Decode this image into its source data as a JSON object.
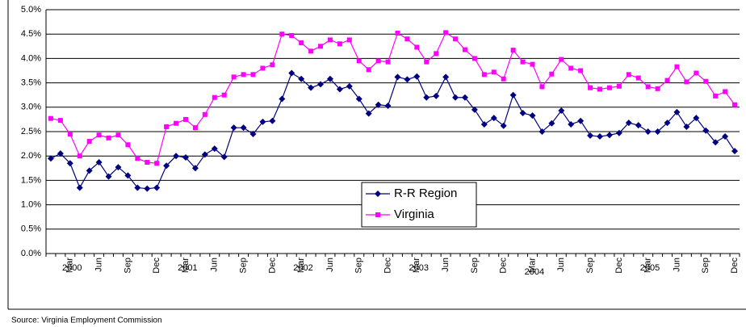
{
  "chart_data": {
    "type": "line",
    "categories": [
      null,
      null,
      "Mar",
      null,
      null,
      "Jun",
      null,
      null,
      "Sep",
      null,
      null,
      "Dec",
      null,
      null,
      "Mar",
      null,
      null,
      "Jun",
      null,
      null,
      "Sep",
      null,
      null,
      "Dec",
      null,
      null,
      "Mar",
      null,
      null,
      "Jun",
      null,
      null,
      "Sep",
      null,
      null,
      "Dec",
      null,
      null,
      "Mar",
      null,
      null,
      "Jun",
      null,
      null,
      "Sep",
      null,
      null,
      "Dec",
      null,
      null,
      "Mar",
      null,
      null,
      "Jun",
      null,
      null,
      "Sep",
      null,
      null,
      "Dec",
      null,
      null,
      "Mar",
      null,
      null,
      "Jun",
      null,
      null,
      "Sep",
      null,
      null,
      "Dec"
    ],
    "year_labels": [
      "2000",
      "2001",
      "2002",
      "2003",
      "2004",
      "2005"
    ],
    "series": [
      {
        "name": "R-R Region",
        "color": "#000080",
        "marker": "diamond",
        "values": [
          1.95,
          2.05,
          1.85,
          1.35,
          1.7,
          1.87,
          1.58,
          1.77,
          1.6,
          1.35,
          1.33,
          1.35,
          1.8,
          2.0,
          1.97,
          1.75,
          2.03,
          2.15,
          1.98,
          2.58,
          2.58,
          2.45,
          2.7,
          2.72,
          3.17,
          3.7,
          3.58,
          3.4,
          3.47,
          3.58,
          3.37,
          3.43,
          3.17,
          2.87,
          3.05,
          3.03,
          3.62,
          3.57,
          3.63,
          3.2,
          3.23,
          3.62,
          3.2,
          3.2,
          2.95,
          2.65,
          2.78,
          2.62,
          3.25,
          2.88,
          2.83,
          2.5,
          2.67,
          2.93,
          2.65,
          2.72,
          2.42,
          2.4,
          2.43,
          2.47,
          2.68,
          2.63,
          2.5,
          2.5,
          2.68,
          2.9,
          2.6,
          2.78,
          2.52,
          2.28,
          2.4,
          2.1
        ]
      },
      {
        "name": "Virginia",
        "color": "#ff00ff",
        "marker": "square",
        "values": [
          2.77,
          2.73,
          2.45,
          2.0,
          2.3,
          2.43,
          2.37,
          2.43,
          2.23,
          1.95,
          1.87,
          1.85,
          2.6,
          2.67,
          2.75,
          2.58,
          2.85,
          3.2,
          3.25,
          3.62,
          3.67,
          3.67,
          3.8,
          3.87,
          4.5,
          4.47,
          4.32,
          4.15,
          4.25,
          4.38,
          4.3,
          4.38,
          3.95,
          3.77,
          3.95,
          3.93,
          4.52,
          4.4,
          4.23,
          3.93,
          4.1,
          4.53,
          4.4,
          4.18,
          4.0,
          3.67,
          3.72,
          3.58,
          4.17,
          3.93,
          3.88,
          3.42,
          3.68,
          3.98,
          3.8,
          3.75,
          3.4,
          3.37,
          3.4,
          3.43,
          3.67,
          3.6,
          3.42,
          3.38,
          3.55,
          3.83,
          3.52,
          3.7,
          3.53,
          3.23,
          3.32,
          3.05
        ]
      }
    ],
    "ylim": [
      0,
      5
    ],
    "yticks": [
      {
        "value": 0,
        "label": "0.0%"
      },
      {
        "value": 0.5,
        "label": "0.5%"
      },
      {
        "value": 1,
        "label": "1.0%"
      },
      {
        "value": 1.5,
        "label": "1.5%"
      },
      {
        "value": 2,
        "label": "2.0%"
      },
      {
        "value": 2.5,
        "label": "2.5%"
      },
      {
        "value": 3,
        "label": "3.0%"
      },
      {
        "value": 3.5,
        "label": "3.5%"
      },
      {
        "value": 4,
        "label": "4.0%"
      },
      {
        "value": 4.5,
        "label": "4.5%"
      },
      {
        "value": 5,
        "label": "5.0%"
      }
    ],
    "grid": true,
    "source": "Source: Virginia Employment Commission"
  }
}
